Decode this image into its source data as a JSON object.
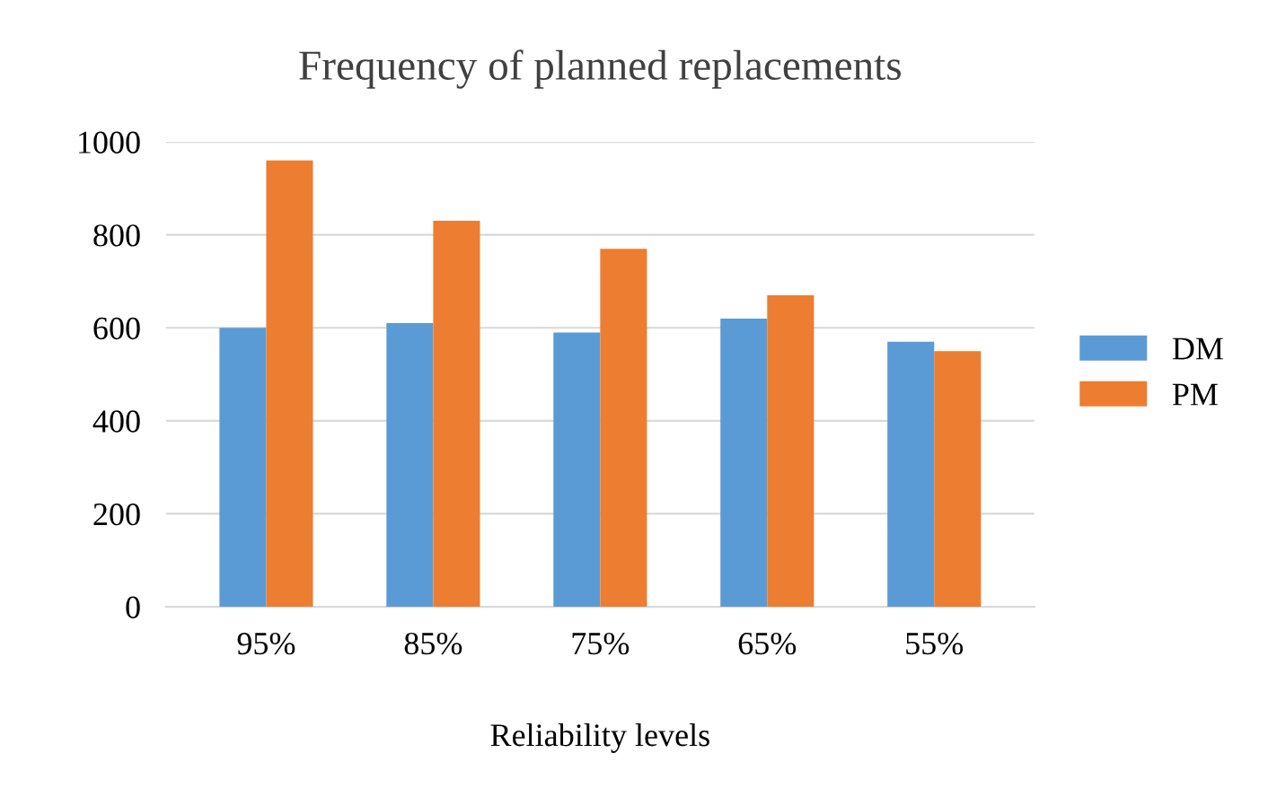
{
  "chart_data": {
    "type": "bar",
    "title": "Frequency of planned replacements",
    "xlabel": "Reliability levels",
    "categories": [
      "95%",
      "85%",
      "75%",
      "65%",
      "55%"
    ],
    "series": [
      {
        "name": "DM",
        "color": "#5b9bd5",
        "values": [
          600,
          610,
          590,
          620,
          570
        ]
      },
      {
        "name": "PM",
        "color": "#ed7d31",
        "values": [
          960,
          830,
          770,
          670,
          550
        ]
      }
    ],
    "ylim": [
      0,
      1000
    ],
    "yticks": [
      0,
      200,
      400,
      600,
      800,
      1000
    ],
    "grid": "y",
    "legend": "right"
  }
}
